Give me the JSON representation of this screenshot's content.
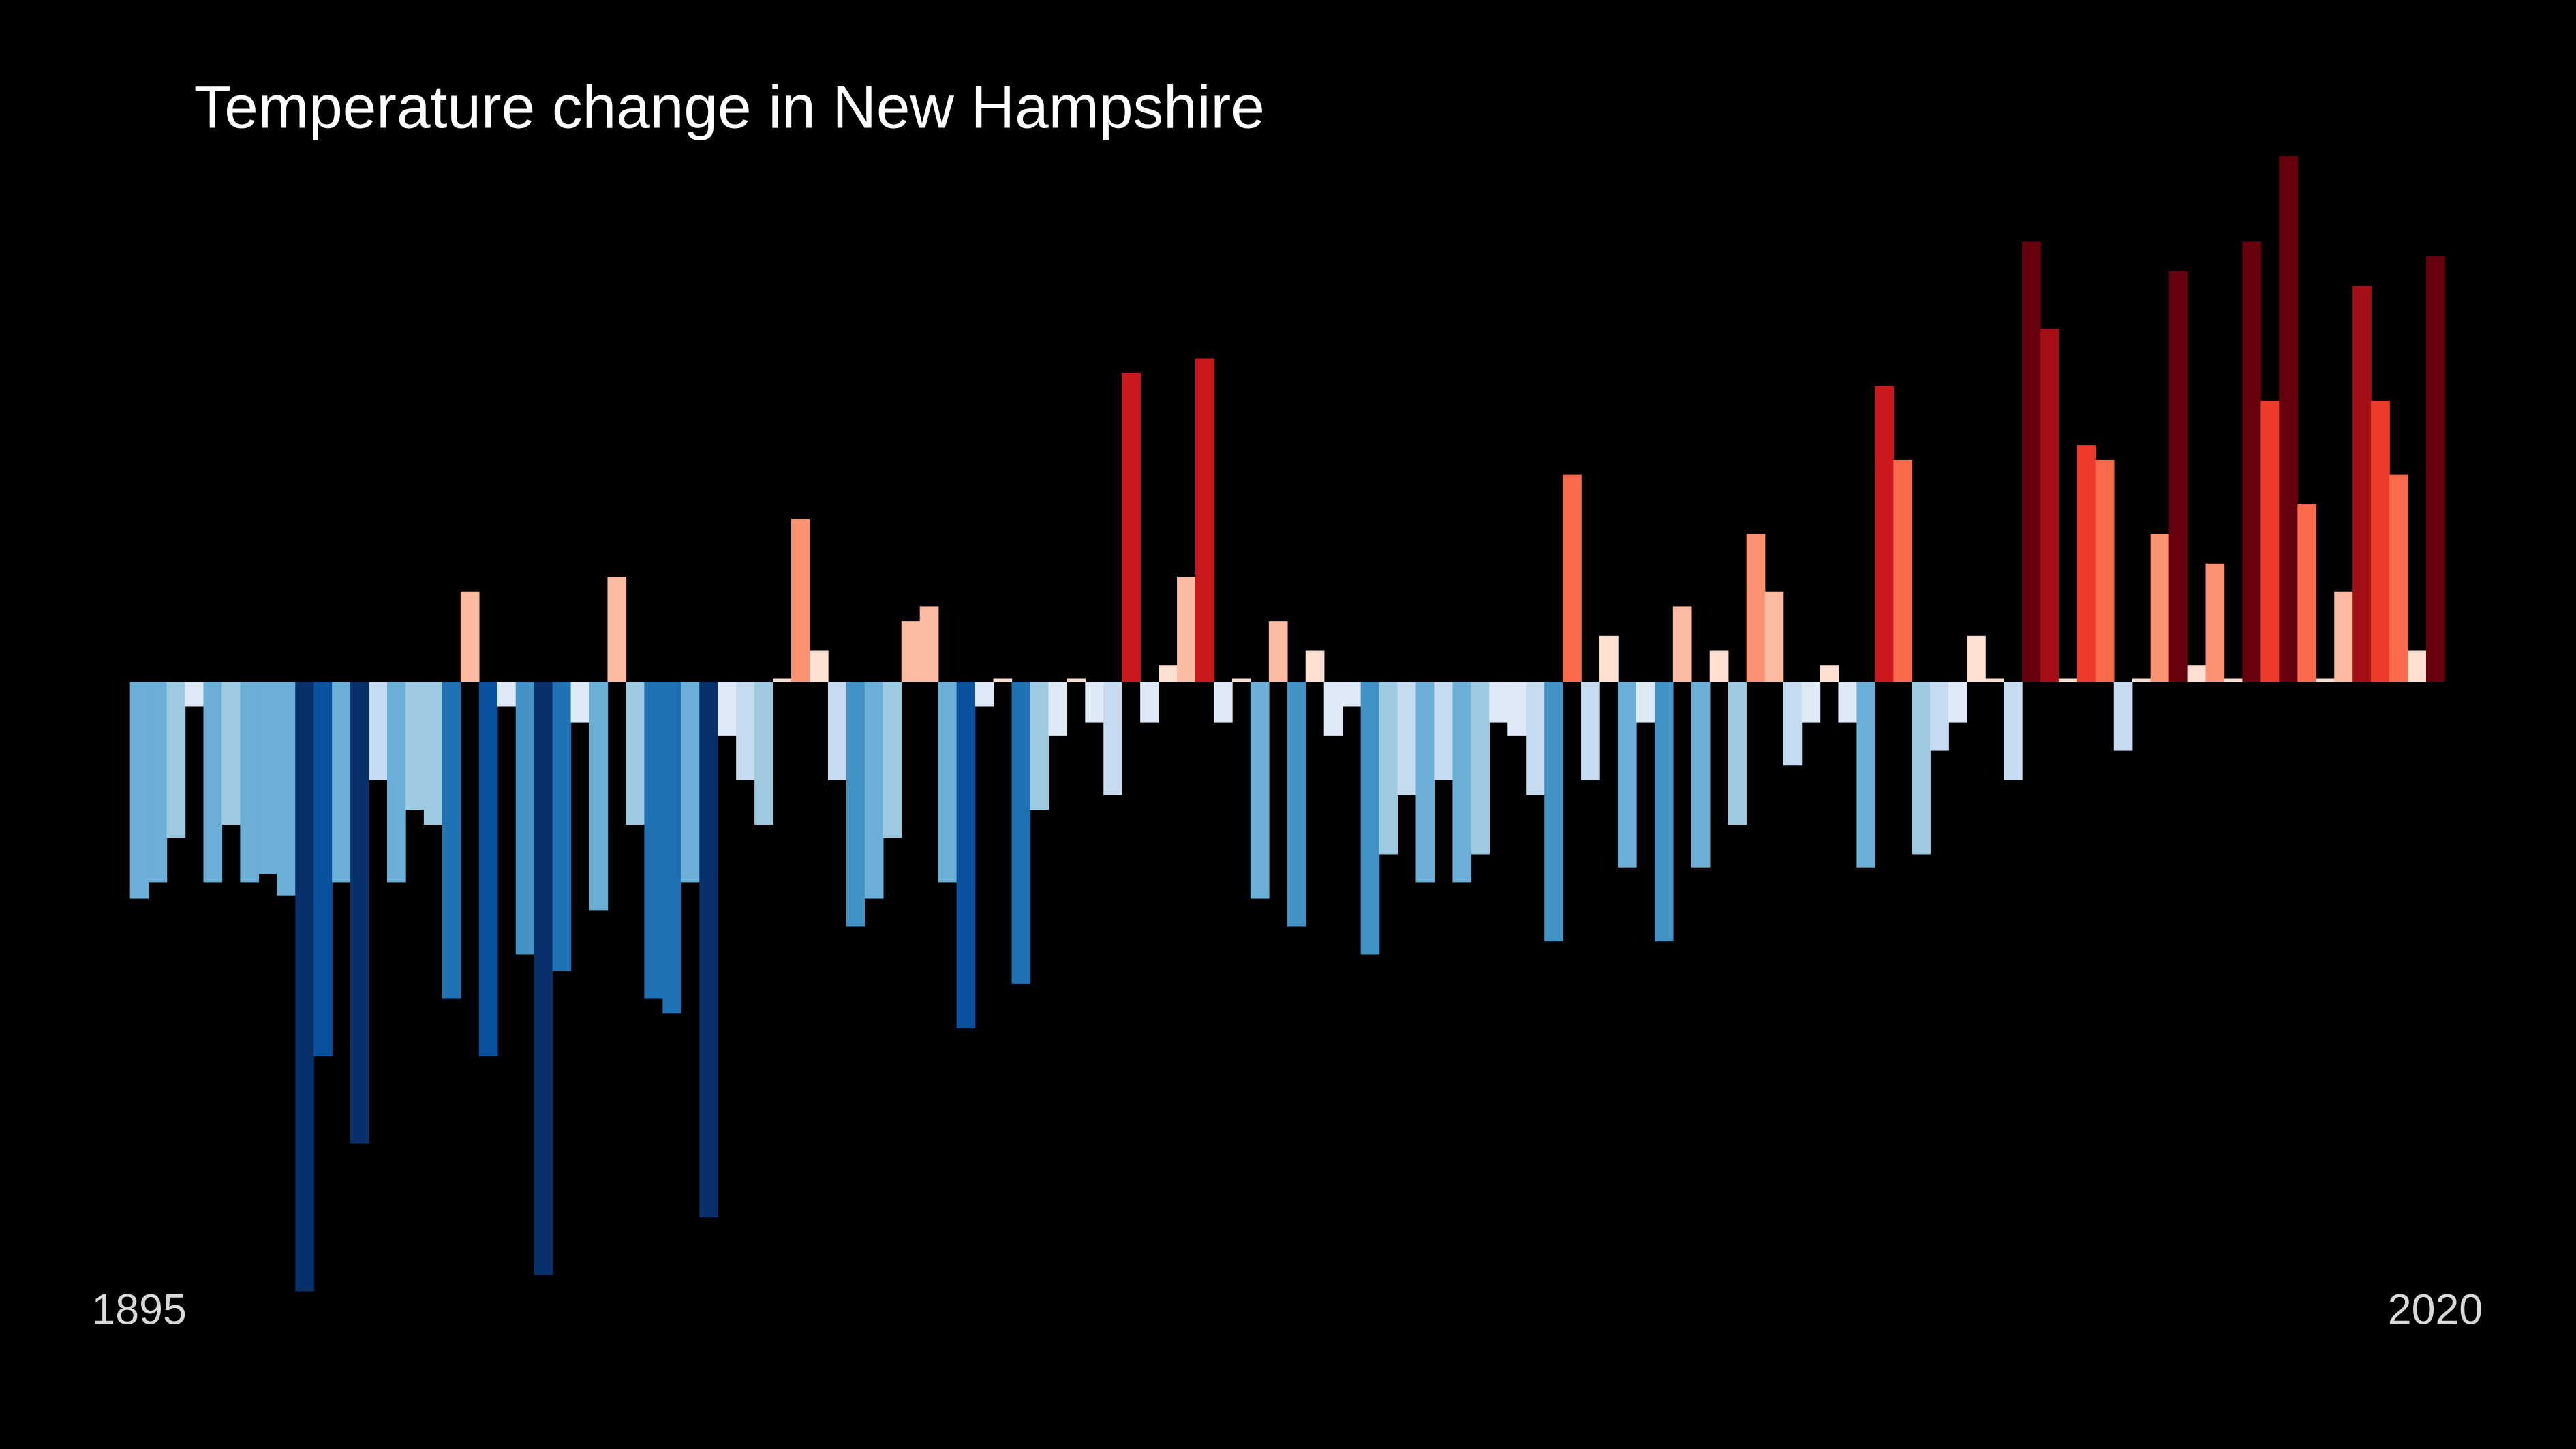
{
  "chart_data": {
    "type": "bar",
    "title": "Temperature change in New Hampshire",
    "values": [
      -1.32,
      -1.22,
      -0.95,
      -0.15,
      -1.22,
      -0.87,
      -1.22,
      -1.17,
      -1.3,
      -3.71,
      -2.28,
      -1.22,
      -2.81,
      -0.6,
      -1.22,
      -0.78,
      -0.87,
      -1.93,
      0.55,
      -2.28,
      -0.15,
      -1.66,
      -3.61,
      -1.76,
      -0.25,
      -1.39,
      0.64,
      -0.87,
      -1.93,
      -2.02,
      -1.22,
      -3.26,
      -0.33,
      -0.6,
      -0.87,
      0.02,
      0.99,
      0.19,
      -0.6,
      -1.49,
      -1.32,
      -0.95,
      0.37,
      0.46,
      -1.22,
      -2.11,
      -0.15,
      0.02,
      -1.84,
      -0.78,
      -0.33,
      0.02,
      -0.25,
      -0.69,
      1.88,
      -0.25,
      0.1,
      0.64,
      1.97,
      -0.25,
      0.02,
      -1.32,
      0.37,
      -1.49,
      0.19,
      -0.33,
      -0.15,
      -1.66,
      -1.05,
      -0.69,
      -1.22,
      -0.6,
      -1.22,
      -1.05,
      -0.25,
      -0.33,
      -0.69,
      -1.58,
      1.26,
      -0.6,
      0.28,
      -1.13,
      -0.25,
      -1.58,
      0.46,
      -1.13,
      0.19,
      -0.87,
      0.9,
      0.55,
      -0.51,
      -0.25,
      0.1,
      -0.25,
      -1.13,
      1.8,
      1.35,
      -1.05,
      -0.42,
      -0.25,
      0.28,
      0.02,
      -0.6,
      2.68,
      2.15,
      0.02,
      1.44,
      1.35,
      -0.42,
      0.02,
      0.9,
      2.5,
      0.1,
      0.72,
      0.02,
      2.68,
      1.71,
      3.2,
      1.08,
      0.02,
      0.55,
      2.41,
      1.71,
      1.26,
      0.19,
      2.59
    ],
    "xlim": [
      1895,
      2020
    ],
    "xticks": [
      1895,
      2020
    ],
    "ylim": [
      -4.15,
      4.15
    ],
    "colormap": [
      "#08306b",
      "#08519c",
      "#2171b5",
      "#4292c6",
      "#6baed6",
      "#9ecae1",
      "#c6dbef",
      "#deebf7",
      "#fee0d2",
      "#fcbba1",
      "#fc9272",
      "#fb6a4a",
      "#ef3b2c",
      "#cb181d",
      "#a50f15",
      "#67000d"
    ],
    "clim": [
      -2.8,
      2.8
    ]
  }
}
